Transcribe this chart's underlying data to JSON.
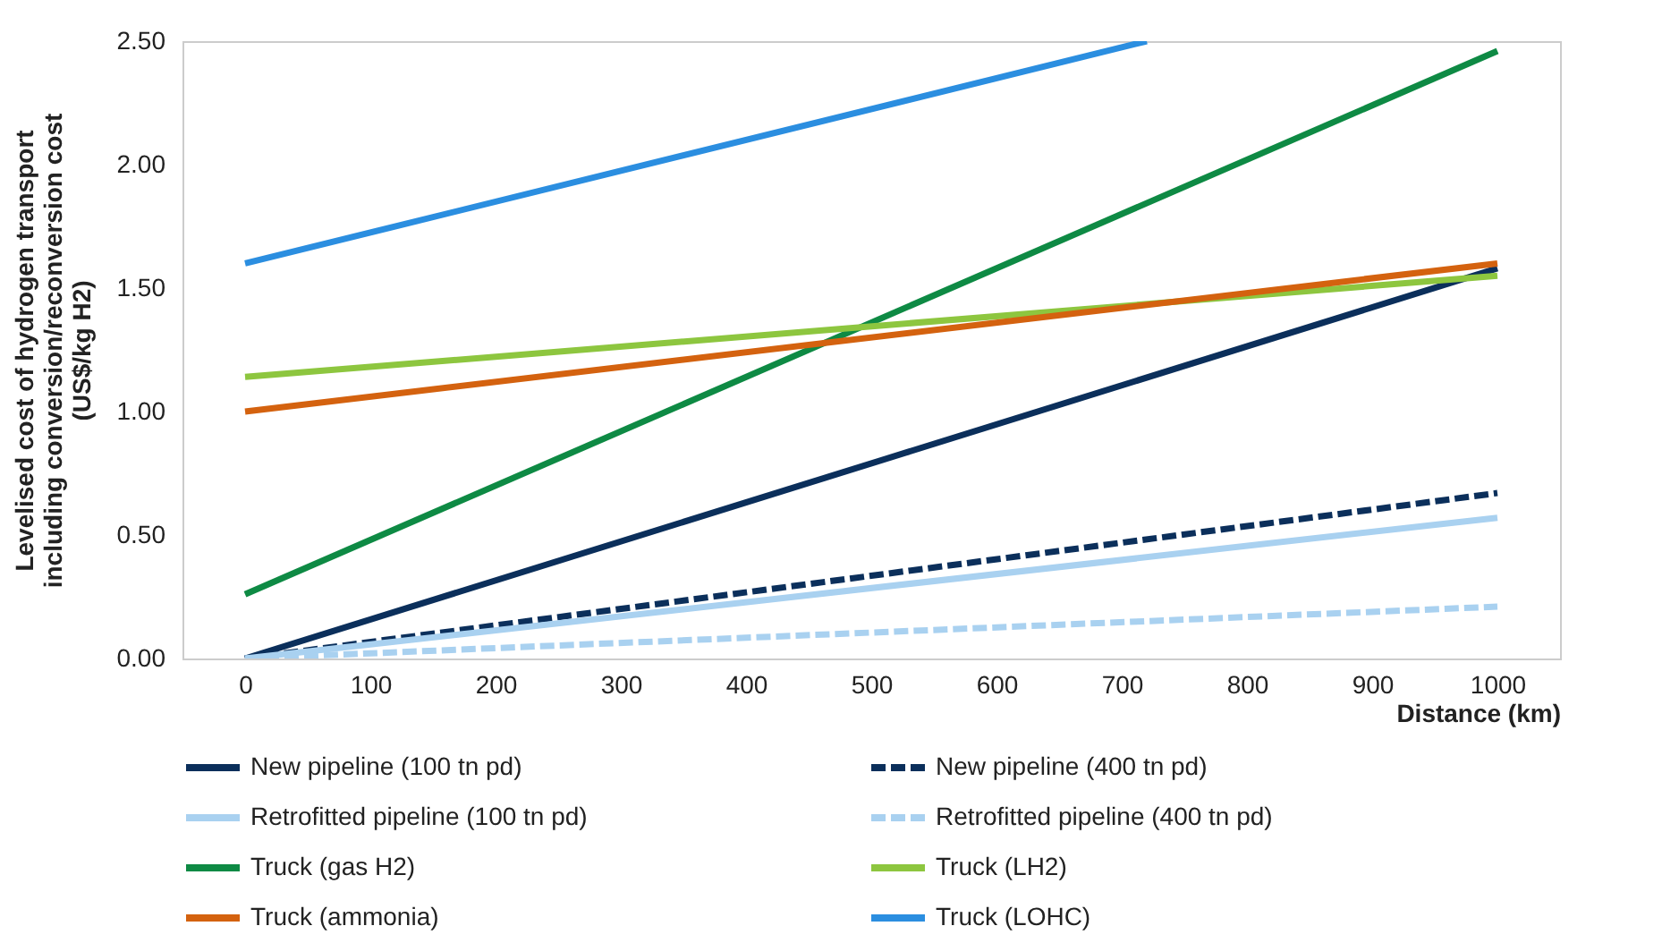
{
  "chart_data": {
    "type": "line",
    "xlabel": "Distance (km)",
    "ylabel": "Levelised cost of hydrogen transport\nincluding conversion/reconversion cost\n(US$/kg H2)",
    "xlim": [
      -50,
      1050
    ],
    "xticks": [
      0,
      100,
      200,
      300,
      400,
      500,
      600,
      700,
      800,
      900,
      1000
    ],
    "ylim": [
      0,
      2.5
    ],
    "yticks": [
      {
        "value": 0,
        "label": "0.00"
      },
      {
        "value": 0.5,
        "label": "0.50"
      },
      {
        "value": 1,
        "label": "1.00"
      },
      {
        "value": 1.5,
        "label": "1.50"
      },
      {
        "value": 2,
        "label": "2.00"
      },
      {
        "value": 2.5,
        "label": "2.50"
      }
    ],
    "grid": false,
    "legend": "bottom",
    "marker": "none",
    "series": [
      {
        "name": "New pipeline (100 tn pd)",
        "color": "#0b2f5b",
        "line_style": "solid",
        "x": [
          0,
          1000
        ],
        "values": [
          0,
          1.58
        ]
      },
      {
        "name": "New pipeline (400 tn pd)",
        "color": "#0b2f5b",
        "line_style": "dashed",
        "x": [
          0,
          1000
        ],
        "values": [
          0,
          0.67
        ]
      },
      {
        "name": "Retrofitted pipeline (100 tn pd)",
        "color": "#a9d1f0",
        "line_style": "solid",
        "x": [
          0,
          1000
        ],
        "values": [
          0,
          0.57
        ]
      },
      {
        "name": "Retrofitted pipeline (400 tn pd)",
        "color": "#a9d1f0",
        "line_style": "dashed",
        "x": [
          0,
          1000
        ],
        "values": [
          0,
          0.21
        ]
      },
      {
        "name": "Truck (gas H2)",
        "color": "#0e8a44",
        "line_style": "solid",
        "x": [
          0,
          1000
        ],
        "values": [
          0.26,
          2.46
        ]
      },
      {
        "name": "Truck (LH2)",
        "color": "#8dc63f",
        "line_style": "solid",
        "x": [
          0,
          1000
        ],
        "values": [
          1.14,
          1.55
        ]
      },
      {
        "name": "Truck (ammonia)",
        "color": "#d4620f",
        "line_style": "solid",
        "x": [
          0,
          1000
        ],
        "values": [
          1.0,
          1.6
        ]
      },
      {
        "name": "Truck (LOHC)",
        "color": "#2b8ee0",
        "line_style": "solid",
        "x": [
          0,
          720
        ],
        "values": [
          1.6,
          2.5
        ]
      }
    ]
  }
}
